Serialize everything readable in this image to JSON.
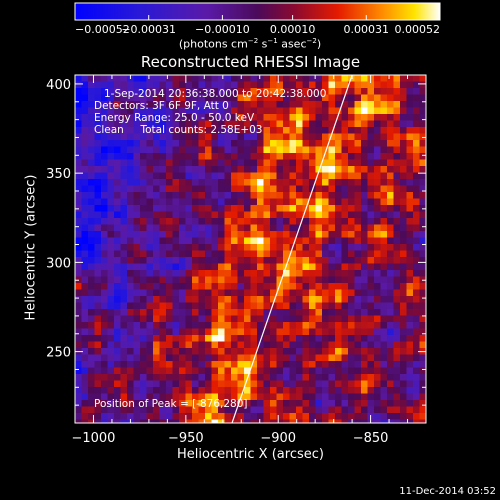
{
  "chart_data": {
    "type": "heatmap",
    "title": "Reconstructed RHESSI Image",
    "xlabel": "Heliocentric X (arcsec)",
    "ylabel": "Heliocentric Y (arcsec)",
    "xlim": [
      -1010,
      -820
    ],
    "ylim": [
      210,
      405
    ],
    "x_ticks": [
      -1000,
      -950,
      -900,
      -850
    ],
    "x_tick_labels": [
      "−1000",
      "−950",
      "−900",
      "−850"
    ],
    "y_ticks": [
      250,
      300,
      350,
      400
    ],
    "y_tick_labels": [
      "250",
      "300",
      "350",
      "400"
    ],
    "colorbar": {
      "min": -0.00052,
      "max": 0.00052,
      "tick_values": [
        -0.00052,
        -0.00031,
        -0.0001,
        0.0001,
        0.00031,
        0.00052
      ],
      "tick_labels": [
        "−0.00052",
        "−0.00031",
        "−0.00010",
        "0.00010",
        "0.00031",
        "0.00052"
      ],
      "units_prefix": "(photons cm",
      "units_sup1": "−2",
      "units_mid": " s",
      "units_sup2": "−1",
      "units_mid2": " asec",
      "units_sup3": "−2",
      "units_suffix": ")"
    },
    "annotations": [
      "1-Sep-2014 20:36:38.000 to 20:42:38.000",
      "Detectors: 3F 6F 9F, Att 0",
      "Energy Range: 25.0 - 50.0 keV",
      "Clean     Total counts: 2.58E+03"
    ],
    "peak_label": "Position of Peak = [-876,280]",
    "peak_position": [
      -876,
      280
    ],
    "limb_points": [
      [
        -925,
        210
      ],
      [
        -905,
        270
      ],
      [
        -885,
        330
      ],
      [
        -860,
        405
      ]
    ],
    "grid": false,
    "colormap": "rainbow-like: blue-purple-red-orange-yellow-white"
  },
  "timestamp": "11-Dec-2014 03:52",
  "colors": {
    "background": "#000000",
    "limb": "#ffffff",
    "axes": "#ffffff"
  }
}
